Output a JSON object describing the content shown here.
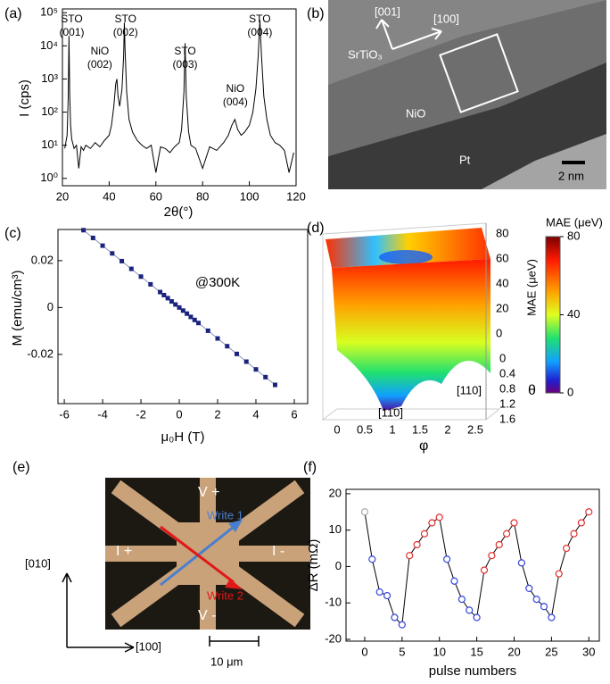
{
  "chart_data": [
    {
      "type": "line",
      "panel_label": "(a)",
      "xlabel": "2θ(°)",
      "ylabel": "I (cps)",
      "ylog": true,
      "xlim": [
        20,
        120
      ],
      "ylim": [
        0.6,
        130000
      ],
      "xticks": [
        20,
        40,
        60,
        80,
        100,
        120
      ],
      "yticks": [
        {
          "value": 1,
          "label": "10⁰"
        },
        {
          "value": 10,
          "label": "10¹"
        },
        {
          "value": 100,
          "label": "10²"
        },
        {
          "value": 1000,
          "label": "10³"
        },
        {
          "value": 10000,
          "label": "10⁴"
        },
        {
          "value": 100000,
          "label": "10⁵"
        }
      ],
      "x": [
        21,
        22,
        22.5,
        22.8,
        23.1,
        23.5,
        24,
        25,
        26,
        27,
        28,
        29,
        30,
        32,
        34,
        36,
        38,
        40,
        41,
        42,
        42.8,
        43.3,
        43.8,
        44.5,
        45.5,
        46.2,
        46.5,
        46.8,
        47.5,
        48.5,
        50,
        52,
        54,
        56,
        58,
        60,
        62,
        64,
        66,
        68,
        70,
        71,
        72,
        72.5,
        73,
        74,
        75,
        77,
        80,
        83,
        86,
        89,
        91,
        92.5,
        93.8,
        95,
        96.5,
        98,
        100,
        101.5,
        102.8,
        103.8,
        104.5,
        105.2,
        106.2,
        107.5,
        109,
        111,
        113,
        115,
        117,
        119
      ],
      "series": [
        {
          "color": "#000000",
          "values": [
            8,
            20,
            300,
            20000,
            400,
            40,
            15,
            8,
            10,
            2,
            9,
            7,
            10,
            8,
            12,
            9,
            14,
            20,
            40,
            150,
            700,
            1000,
            300,
            150,
            500,
            5000,
            50000,
            8000,
            400,
            60,
            25,
            14,
            10,
            8,
            10,
            1.5,
            9,
            8,
            6,
            9,
            12,
            30,
            400,
            12000,
            300,
            25,
            10,
            8,
            2,
            9,
            7,
            12,
            20,
            40,
            60,
            30,
            20,
            25,
            40,
            100,
            500,
            5000,
            60000,
            5000,
            300,
            60,
            20,
            12,
            10,
            7,
            1.5,
            6
          ]
        }
      ],
      "markers": false,
      "annotations": [
        [
          "STO",
          "(001)"
        ],
        [
          "NiO",
          "(002)"
        ],
        [
          "STO",
          "(002)"
        ],
        [
          "STO",
          "(003)"
        ],
        [
          "NiO",
          "(004)"
        ],
        [
          "STO",
          "(004)"
        ]
      ]
    },
    {
      "type": "line",
      "panel_label": "(c)",
      "xlabel": "μ₀H (T)",
      "ylabel": "M (emu/cm³)",
      "xlim": [
        -6.33,
        6.7
      ],
      "ylim": [
        -0.041,
        0.0333
      ],
      "xticks": [
        -6,
        -4,
        -2,
        0,
        2,
        4,
        6
      ],
      "yticks": [
        -0.02,
        0,
        0.02
      ],
      "x": [
        -5,
        -4.5,
        -4,
        -3.5,
        -3,
        -2.5,
        -2,
        -1.5,
        -1,
        -0.8,
        -0.6,
        -0.4,
        -0.2,
        0,
        0.2,
        0.4,
        0.6,
        0.8,
        1,
        1.5,
        2,
        2.5,
        3,
        3.5,
        4,
        4.5,
        5
      ],
      "series": [
        {
          "color": "#1a237e",
          "line_color": "#8a96b8",
          "values": [
            0.033,
            0.0297,
            0.0264,
            0.0231,
            0.0198,
            0.0165,
            0.0132,
            0.0099,
            0.0066,
            0.0053,
            0.004,
            0.0026,
            0.0013,
            0,
            -0.0013,
            -0.0026,
            -0.004,
            -0.0053,
            -0.0066,
            -0.0099,
            -0.0132,
            -0.0165,
            -0.0198,
            -0.0231,
            -0.0264,
            -0.0297,
            -0.033
          ]
        }
      ],
      "markers": "square",
      "annotations": [
        [
          "@300K"
        ]
      ]
    },
    {
      "type": "line",
      "panel_label": "(f)",
      "xlabel": "pulse numbers",
      "ylabel": "ΔR (mΩ)",
      "xlim": [
        -2.5,
        31.4
      ],
      "ylim": [
        -20.5,
        21.2
      ],
      "xticks": [
        0,
        5,
        10,
        15,
        20,
        25,
        30
      ],
      "yticks": [
        -20,
        -10,
        0,
        10,
        20
      ],
      "x": [
        0,
        1,
        2,
        3,
        4,
        5,
        6,
        7,
        8,
        9,
        10,
        11,
        12,
        13,
        14,
        15,
        16,
        17,
        18,
        19,
        20,
        21,
        22,
        23,
        24,
        25,
        26,
        27,
        28,
        29,
        30
      ],
      "series": [
        {
          "color": "#000000",
          "line_color": "#000000",
          "values": [
            15,
            2,
            -7,
            -8,
            -14,
            -16,
            3,
            6,
            9,
            12,
            13.5,
            2,
            -4,
            -9,
            -12,
            -14,
            -1,
            3,
            6,
            9,
            12,
            1,
            -6,
            -9,
            -11,
            -14,
            -2,
            5,
            9,
            12,
            15
          ],
          "colors": [
            "#aaaaaa",
            "#3344dd",
            "#3344dd",
            "#3344dd",
            "#3344dd",
            "#3344dd",
            "#e03030",
            "#e03030",
            "#e03030",
            "#e03030",
            "#e03030",
            "#3344dd",
            "#3344dd",
            "#3344dd",
            "#3344dd",
            "#3344dd",
            "#e03030",
            "#e03030",
            "#e03030",
            "#e03030",
            "#e03030",
            "#3344dd",
            "#3344dd",
            "#3344dd",
            "#3344dd",
            "#3344dd",
            "#e03030",
            "#e03030",
            "#e03030",
            "#e03030",
            "#e03030"
          ]
        }
      ],
      "markers": "open-circle",
      "annotations": []
    }
  ],
  "images": {
    "b": {
      "panel_label": "(b)",
      "srtio3": "SrTiO₃",
      "nio": "NiO",
      "pt": "Pt",
      "dir1": "[001]",
      "dir2": "[100]",
      "scale": "2 nm"
    },
    "d": {
      "panel_label": "(d)",
      "colorbar_title": "MAE (μeV)",
      "colorbar_lim": [
        0,
        80
      ],
      "colorbar_ticks": [
        0,
        40,
        80
      ],
      "zlabel": "MAE (μeV)",
      "zticks": [
        0,
        20,
        40,
        60,
        80
      ],
      "theta_label": "θ",
      "theta_ticks": [
        0,
        0.4,
        0.8,
        1.2,
        1.6
      ],
      "phi_label": "φ",
      "phi_ticks": [
        0,
        0.5,
        1,
        1.5,
        2,
        2.5
      ],
      "dir1": "[110]",
      "dir2": "[11̄0]"
    },
    "e": {
      "panel_label": "(e)",
      "vplus": "V +",
      "vminus": "V -",
      "iplus": "I +",
      "iminus": "I -",
      "write1": "Write 1",
      "write2": "Write 2",
      "axis_y": "[010]",
      "axis_x": "[100]",
      "scale": "10 μm"
    }
  }
}
